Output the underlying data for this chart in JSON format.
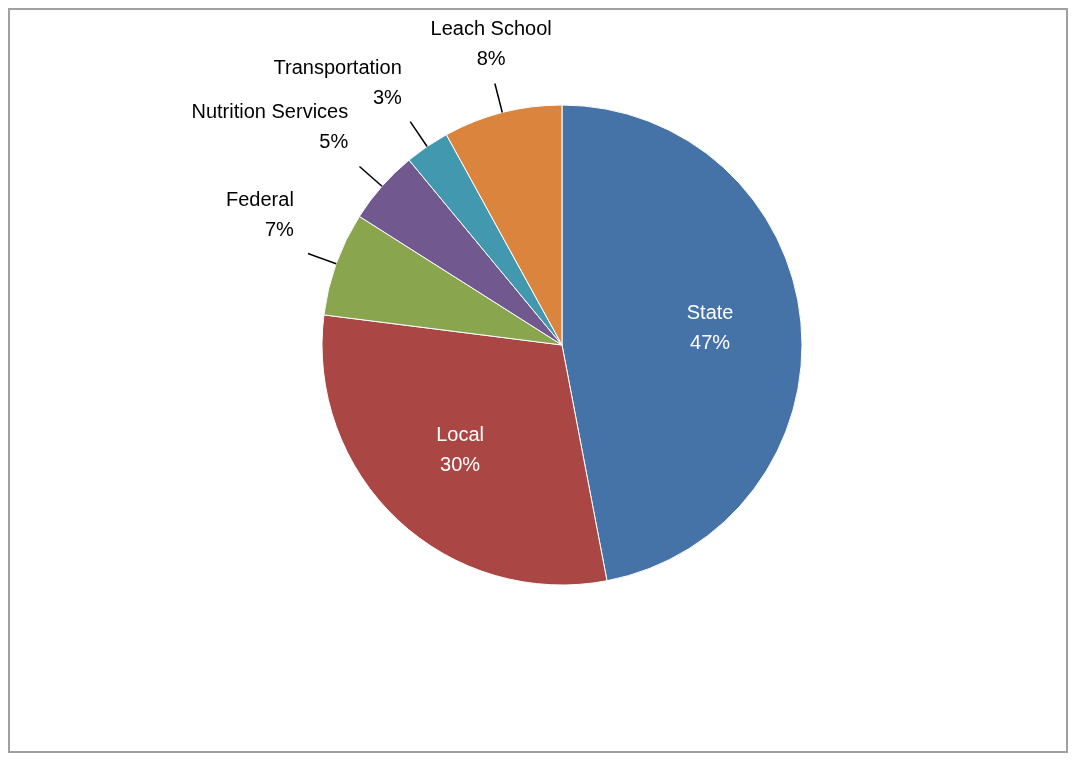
{
  "chart_data": {
    "type": "pie",
    "categories": [
      "State",
      "Local",
      "Federal",
      "Nutrition Services",
      "Transportation",
      "Leach School"
    ],
    "values": [
      47,
      30,
      7,
      5,
      3,
      8
    ],
    "value_labels": [
      "47%",
      "30%",
      "7%",
      "5%",
      "3%",
      "8%"
    ],
    "colors": [
      "#4572a7",
      "#aa4643",
      "#89a54e",
      "#71588f",
      "#4198af",
      "#db843d"
    ]
  }
}
